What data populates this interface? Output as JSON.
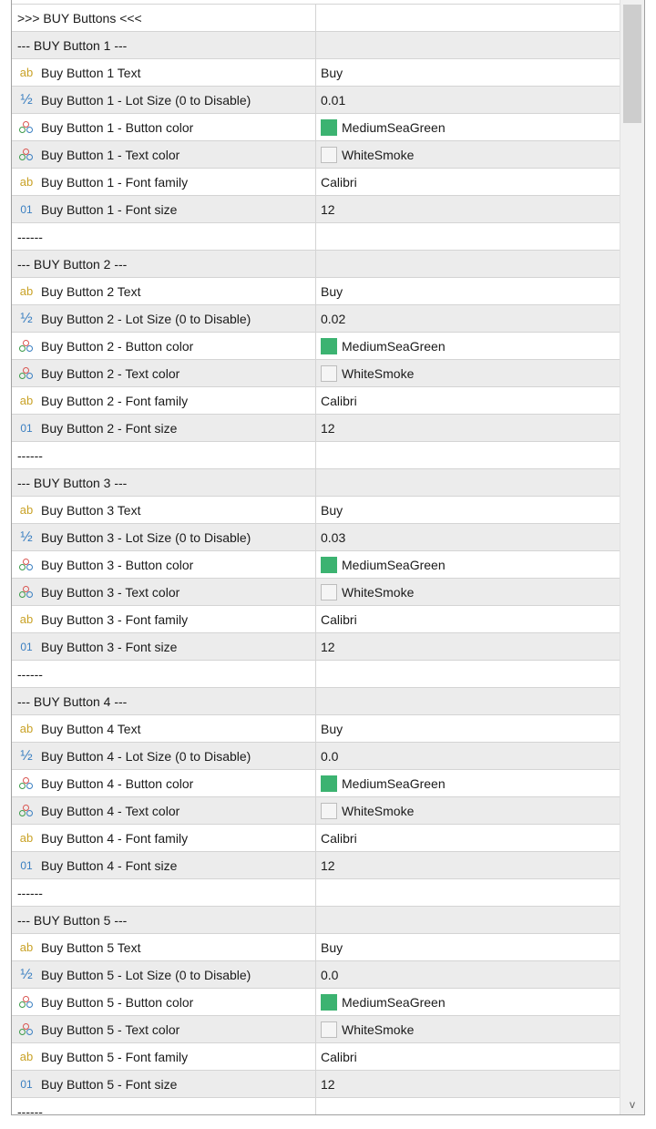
{
  "colors": {
    "MediumSeaGreen": "#3cb371",
    "WhiteSmoke": "#f5f5f5"
  },
  "icons": {
    "ab": "string-type-icon",
    "half": "double-type-icon",
    "clr": "color-type-icon",
    "num": "integer-type-icon"
  },
  "rows": [
    {
      "name": ">>> BUY Buttons <<<",
      "value": ""
    },
    {
      "name": "--- BUY Button 1 ---",
      "value": ""
    },
    {
      "icon": "ab",
      "name": "Buy Button 1 Text",
      "value": "Buy"
    },
    {
      "icon": "half",
      "name": "Buy Button 1 - Lot Size (0 to Disable)",
      "value": "0.01"
    },
    {
      "icon": "clr",
      "name": "Buy Button 1 - Button color",
      "value": "MediumSeaGreen",
      "swatch": "#3cb371"
    },
    {
      "icon": "clr",
      "name": "Buy Button 1 - Text color",
      "value": "WhiteSmoke",
      "swatch": "#f5f5f5"
    },
    {
      "icon": "ab",
      "name": "Buy Button 1 - Font family",
      "value": "Calibri"
    },
    {
      "icon": "num",
      "name": "Buy Button 1 - Font size",
      "value": "12"
    },
    {
      "name": "------",
      "value": ""
    },
    {
      "name": "--- BUY Button 2 ---",
      "value": ""
    },
    {
      "icon": "ab",
      "name": "Buy Button 2 Text",
      "value": "Buy"
    },
    {
      "icon": "half",
      "name": "Buy Button 2 - Lot Size (0 to Disable)",
      "value": "0.02"
    },
    {
      "icon": "clr",
      "name": "Buy Button 2 - Button color",
      "value": "MediumSeaGreen",
      "swatch": "#3cb371"
    },
    {
      "icon": "clr",
      "name": "Buy Button 2 - Text color",
      "value": "WhiteSmoke",
      "swatch": "#f5f5f5"
    },
    {
      "icon": "ab",
      "name": "Buy Button 2 - Font family",
      "value": "Calibri"
    },
    {
      "icon": "num",
      "name": "Buy Button 2 - Font size",
      "value": "12"
    },
    {
      "name": "------",
      "value": ""
    },
    {
      "name": "--- BUY Button 3 ---",
      "value": ""
    },
    {
      "icon": "ab",
      "name": "Buy Button 3 Text",
      "value": "Buy"
    },
    {
      "icon": "half",
      "name": "Buy Button 3 - Lot Size (0 to Disable)",
      "value": "0.03"
    },
    {
      "icon": "clr",
      "name": "Buy Button 3 - Button color",
      "value": "MediumSeaGreen",
      "swatch": "#3cb371"
    },
    {
      "icon": "clr",
      "name": "Buy Button 3 - Text color",
      "value": "WhiteSmoke",
      "swatch": "#f5f5f5"
    },
    {
      "icon": "ab",
      "name": "Buy Button 3 - Font family",
      "value": "Calibri"
    },
    {
      "icon": "num",
      "name": "Buy Button 3 - Font size",
      "value": "12"
    },
    {
      "name": "------",
      "value": ""
    },
    {
      "name": "--- BUY Button 4 ---",
      "value": ""
    },
    {
      "icon": "ab",
      "name": "Buy Button 4 Text",
      "value": "Buy"
    },
    {
      "icon": "half",
      "name": "Buy Button 4 - Lot Size (0 to Disable)",
      "value": "0.0"
    },
    {
      "icon": "clr",
      "name": "Buy Button 4 - Button color",
      "value": "MediumSeaGreen",
      "swatch": "#3cb371"
    },
    {
      "icon": "clr",
      "name": "Buy Button 4 - Text color",
      "value": "WhiteSmoke",
      "swatch": "#f5f5f5"
    },
    {
      "icon": "ab",
      "name": "Buy Button 4 - Font family",
      "value": "Calibri"
    },
    {
      "icon": "num",
      "name": "Buy Button 4 - Font size",
      "value": "12"
    },
    {
      "name": "------",
      "value": ""
    },
    {
      "name": "--- BUY Button 5 ---",
      "value": ""
    },
    {
      "icon": "ab",
      "name": "Buy Button 5 Text",
      "value": "Buy"
    },
    {
      "icon": "half",
      "name": "Buy Button 5 - Lot Size (0 to Disable)",
      "value": "0.0"
    },
    {
      "icon": "clr",
      "name": "Buy Button 5 - Button color",
      "value": "MediumSeaGreen",
      "swatch": "#3cb371"
    },
    {
      "icon": "clr",
      "name": "Buy Button 5 - Text color",
      "value": "WhiteSmoke",
      "swatch": "#f5f5f5"
    },
    {
      "icon": "ab",
      "name": "Buy Button 5 - Font family",
      "value": "Calibri"
    },
    {
      "icon": "num",
      "name": "Buy Button 5 - Font size",
      "value": "12"
    },
    {
      "name": "------",
      "value": ""
    }
  ],
  "scrollbar": {
    "down_glyph": "v"
  }
}
